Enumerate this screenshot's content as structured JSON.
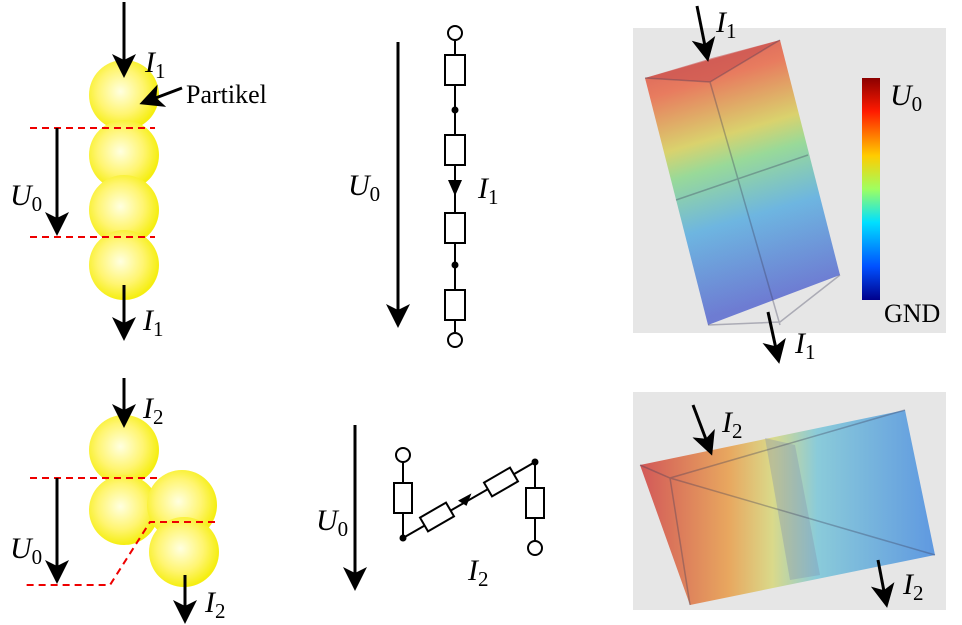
{
  "top_left": {
    "current_in": {
      "main": "I",
      "sub": "1"
    },
    "particle": "Partikel",
    "voltage": {
      "main": "U",
      "sub": "0"
    },
    "current_out": {
      "main": "I",
      "sub": "1"
    }
  },
  "top_middle": {
    "voltage": {
      "main": "U",
      "sub": "0"
    },
    "current": {
      "main": "I",
      "sub": "1"
    }
  },
  "top_right": {
    "current_in": {
      "main": "I",
      "sub": "1"
    },
    "colorbar_max": {
      "main": "U",
      "sub": "0"
    },
    "colorbar_min": "GND",
    "current_out": {
      "main": "I",
      "sub": "1"
    }
  },
  "bottom_left": {
    "current_in": {
      "main": "I",
      "sub": "2"
    },
    "voltage": {
      "main": "U",
      "sub": "0"
    },
    "current_out": {
      "main": "I",
      "sub": "2"
    }
  },
  "bottom_middle": {
    "voltage": {
      "main": "U",
      "sub": "0"
    },
    "current": {
      "main": "I",
      "sub": "2"
    }
  },
  "bottom_right": {
    "current_in": {
      "main": "I",
      "sub": "2"
    },
    "current_out": {
      "main": "I",
      "sub": "2"
    }
  }
}
